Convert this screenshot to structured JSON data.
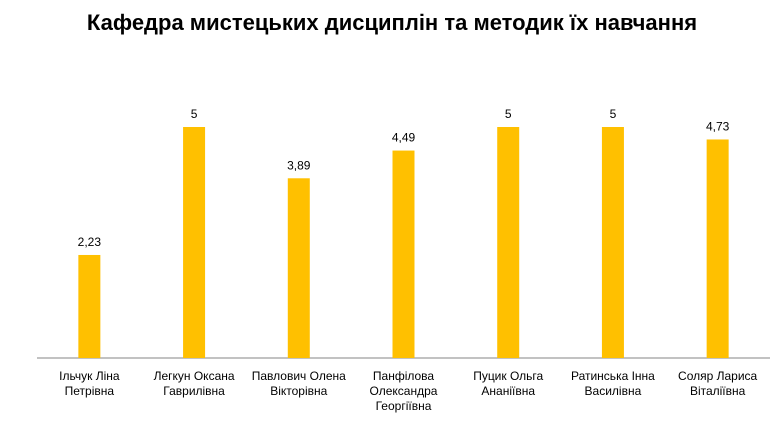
{
  "chart_data": {
    "type": "bar",
    "title": "Кафедра мистецьких дисциплін та методик їх навчання",
    "categories": [
      "Ільчук Ліна Петрівна",
      "Легкун Оксана Гаврилівна",
      "Павлович Олена Вікторівна",
      "Панфілова Олександра Георгіївна",
      "Пуцик Ольга Ананіївна",
      "Ратинська Інна Василівна",
      "Соляр Лариса Віталіївна"
    ],
    "category_lines": [
      [
        "Ільчук Ліна",
        "Петрівна"
      ],
      [
        "Легкун Оксана",
        "Гаврилівна"
      ],
      [
        "Павлович Олена",
        "Вікторівна"
      ],
      [
        "Панфілова",
        "Олександра",
        "Георгіївна"
      ],
      [
        "Пуцик Ольга",
        "Ананіївна"
      ],
      [
        "Ратинська Інна",
        "Василівна"
      ],
      [
        "Соляр Лариса",
        "Віталіївна"
      ]
    ],
    "values": [
      2.23,
      5,
      3.89,
      4.49,
      5,
      5,
      4.73
    ],
    "value_labels": [
      "2,23",
      "5",
      "3,89",
      "4,49",
      "5",
      "5",
      "4,73"
    ],
    "ylim": [
      0,
      5
    ],
    "grid": false,
    "legend": "none",
    "bar_color": "#FFC000",
    "axis_color": "#868686"
  }
}
